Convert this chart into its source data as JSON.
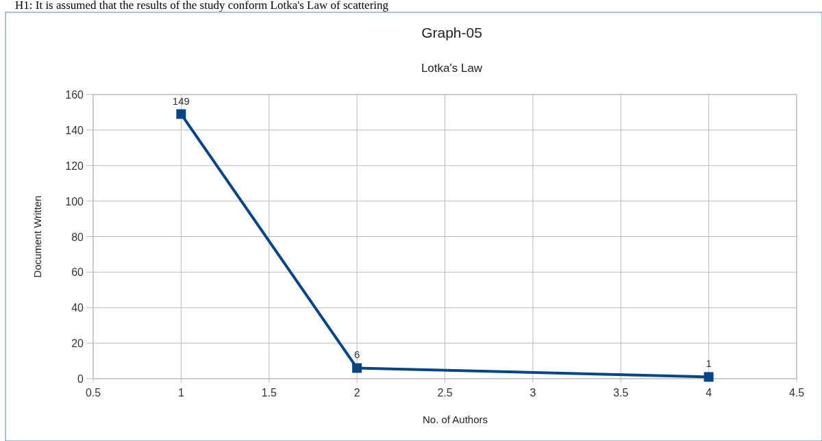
{
  "chart_data": {
    "type": "line",
    "title": "Graph-05",
    "subtitle": "Lotka's Law",
    "xlabel": "No. of Authors",
    "ylabel": "Document Written",
    "annotations": [
      "H1: It is assumed that the results of the study conform Lotka's Law of scattering"
    ],
    "x": [
      1,
      2,
      4
    ],
    "series": [
      {
        "color": "#004586",
        "values": [
          149,
          6,
          1
        ]
      }
    ],
    "xlim": [
      0.5,
      4.5
    ],
    "xticks": [
      0.5,
      1,
      1.5,
      2,
      2.5,
      3,
      3.5,
      4,
      4.5
    ],
    "ylim": [
      0,
      160
    ],
    "yticks": [
      0,
      20,
      40,
      60,
      80,
      100,
      120,
      140,
      160
    ],
    "grid": true,
    "marker": "square",
    "line_style": "solid",
    "data_labels": true
  }
}
